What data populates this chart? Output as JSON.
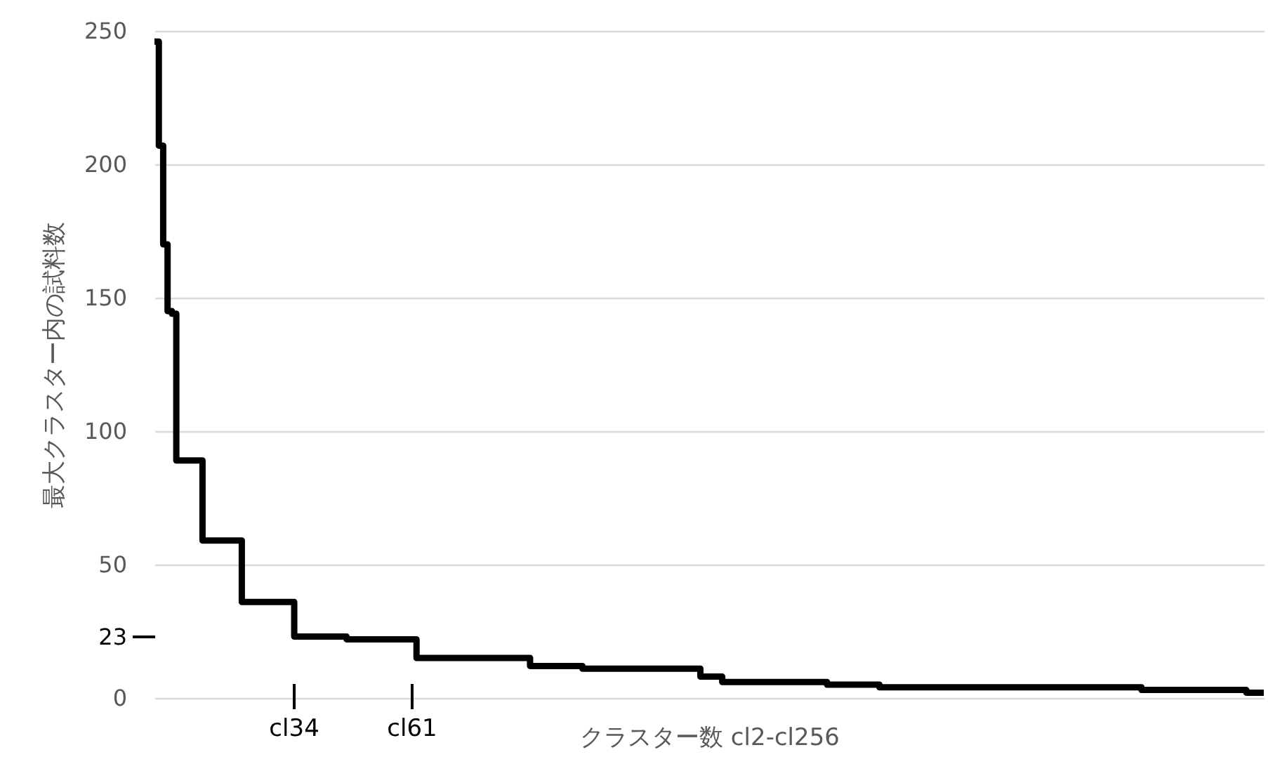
{
  "chart_data": {
    "type": "step",
    "xlabel": "クラスター数 cl2-cl256",
    "ylabel": "最大クラスター内の試料数",
    "x": [
      2,
      3,
      4,
      5,
      6,
      7,
      13,
      22,
      34,
      46,
      62,
      88,
      100,
      127,
      132,
      156,
      168,
      228,
      252,
      256
    ],
    "series": [
      {
        "color": "#000000",
        "values": [
          246,
          207,
          170,
          145,
          144,
          89,
          59,
          36,
          23,
          22,
          15,
          12,
          11,
          8,
          6,
          5,
          4,
          3,
          2,
          2
        ]
      }
    ],
    "xlim": [
      2,
      256
    ],
    "ylim": [
      0,
      250
    ],
    "yticks": [
      0,
      {
        "value": 23,
        "label": "23"
      },
      50,
      100,
      150,
      200,
      250
    ],
    "grid": "y",
    "tick_labels": "y",
    "ref_lines": [
      {
        "axis": "x",
        "value": 34,
        "label": "cl34"
      },
      {
        "axis": "x",
        "value": 61,
        "label": "cl61"
      }
    ]
  }
}
